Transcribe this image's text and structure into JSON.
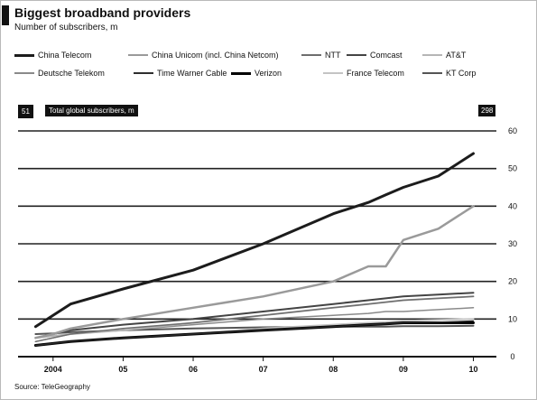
{
  "chart_data": {
    "type": "line",
    "title": "Biggest broadband providers",
    "subtitle": "Number of subscribers, m",
    "source": "Source: TeleGeography",
    "series_label": "Total global subscribers, m",
    "start_label": "51",
    "end_label": "298",
    "x_ticks": [
      "2004",
      "05",
      "06",
      "07",
      "08",
      "09",
      "10"
    ],
    "x_tick_values": [
      2004,
      2005,
      2006,
      2007,
      2008,
      2009,
      2010
    ],
    "xlim": [
      2003.5,
      2010.2
    ],
    "ylim": [
      0,
      60
    ],
    "y_ticks": [
      0,
      10,
      20,
      30,
      40,
      50,
      60
    ],
    "grid": true,
    "legend_position": "top",
    "legend_rows": [
      [
        0,
        1,
        2,
        3,
        4
      ],
      [
        5,
        6,
        7,
        8,
        9
      ]
    ],
    "x": [
      2003.75,
      2004.0,
      2004.25,
      2005.0,
      2006.0,
      2007.0,
      2008.0,
      2008.5,
      2008.75,
      2009.0,
      2009.5,
      2010.0
    ],
    "series": [
      {
        "name": "China Telecom",
        "color": "#1c1c1c",
        "width": 3,
        "dash": "",
        "values": [
          8,
          11,
          14,
          18,
          23,
          30,
          38,
          41,
          43,
          45,
          48,
          54
        ]
      },
      {
        "name": "China Unicom (incl. China Netcom)",
        "color": "#9a9a9a",
        "width": 2.5,
        "dash": "",
        "values": [
          5,
          6,
          7.5,
          10,
          13,
          16,
          20,
          24,
          24,
          31,
          34,
          40
        ]
      },
      {
        "name": "NTT",
        "color": "#6e6e6e",
        "width": 1.5,
        "dash": "",
        "values": [
          4,
          5,
          6,
          7.5,
          9,
          11,
          13,
          14,
          14.5,
          15,
          15.5,
          16
        ]
      },
      {
        "name": "Comcast",
        "color": "#444444",
        "width": 2,
        "dash": "",
        "values": [
          5,
          6,
          7,
          8.5,
          10,
          12,
          14,
          15,
          15.5,
          16,
          16.5,
          17
        ]
      },
      {
        "name": "AT&T",
        "color": "#b5b5b5",
        "width": 2,
        "dash": "",
        "values": [
          5,
          5.5,
          6,
          7,
          9,
          11,
          13,
          14,
          14.5,
          15,
          15.5,
          16
        ]
      },
      {
        "name": "Deutsche Telekom",
        "color": "#8a8a8a",
        "width": 1.5,
        "dash": "",
        "values": [
          4,
          5,
          6,
          7,
          8.5,
          10,
          11,
          11.5,
          12,
          12,
          12.5,
          13
        ]
      },
      {
        "name": "Time Warner Cable",
        "color": "#2e2e2e",
        "width": 1.2,
        "dash": "",
        "values": [
          3,
          3.5,
          4,
          5,
          6,
          7,
          8,
          8.5,
          8.7,
          9,
          9.2,
          9.5
        ]
      },
      {
        "name": "Verizon",
        "color": "#000000",
        "width": 3,
        "dash": "",
        "values": [
          3,
          3.5,
          4,
          5,
          6,
          7,
          8,
          8.5,
          8.7,
          9,
          9,
          9
        ]
      },
      {
        "name": "France Telecom",
        "color": "#c4c4c4",
        "width": 2,
        "dash": "",
        "values": [
          3,
          3.5,
          4,
          5,
          6,
          7.5,
          8.5,
          9,
          9.2,
          9.5,
          9.8,
          10
        ]
      },
      {
        "name": "KT Corp",
        "color": "#555555",
        "width": 2,
        "dash": "",
        "values": [
          6,
          6.2,
          6.5,
          7,
          7.5,
          7.8,
          8,
          8,
          8,
          8.1,
          8.1,
          8.2
        ]
      }
    ]
  }
}
